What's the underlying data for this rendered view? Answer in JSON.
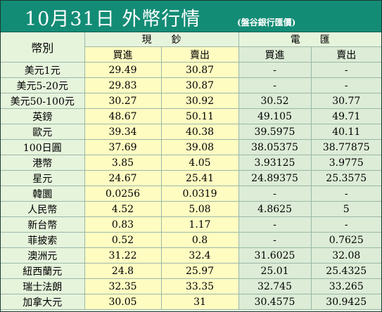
{
  "header": {
    "title": "10月31日 外幣行情",
    "subtitle": "(盤谷銀行匯價)"
  },
  "columns": {
    "currency_label": "幣別",
    "cash_group": "現鈔",
    "wire_group": "電匯",
    "buy": "買進",
    "sell": "賣出"
  },
  "colors": {
    "title_bar": "#138c76",
    "cash_bg": "#fffcc2",
    "wire_bg": "#dcecd6",
    "label_bg": "#e6f4dc"
  },
  "rows": [
    {
      "currency": "美元1元",
      "cash_buy": "29.49",
      "cash_sell": "30.87",
      "wire_buy": "-",
      "wire_sell": "-"
    },
    {
      "currency": "美元5-20元",
      "cash_buy": "29.83",
      "cash_sell": "30.87",
      "wire_buy": "-",
      "wire_sell": "-"
    },
    {
      "currency": "美元50-100元",
      "cash_buy": "30.27",
      "cash_sell": "30.92",
      "wire_buy": "30.52",
      "wire_sell": "30.77"
    },
    {
      "currency": "英鎊",
      "cash_buy": "48.67",
      "cash_sell": "50.11",
      "wire_buy": "49.105",
      "wire_sell": "49.71"
    },
    {
      "currency": "歐元",
      "cash_buy": "39.34",
      "cash_sell": "40.38",
      "wire_buy": "39.5975",
      "wire_sell": "40.11"
    },
    {
      "currency": "100日圓",
      "cash_buy": "37.69",
      "cash_sell": "39.08",
      "wire_buy": "38.05375",
      "wire_sell": "38.77875"
    },
    {
      "currency": "港幣",
      "cash_buy": "3.85",
      "cash_sell": "4.05",
      "wire_buy": "3.93125",
      "wire_sell": "3.9775"
    },
    {
      "currency": "星元",
      "cash_buy": "24.67",
      "cash_sell": "25.41",
      "wire_buy": "24.89375",
      "wire_sell": "25.3575"
    },
    {
      "currency": "韓圜",
      "cash_buy": "0.0256",
      "cash_sell": "0.0319",
      "wire_buy": "-",
      "wire_sell": "-"
    },
    {
      "currency": "人民幣",
      "cash_buy": "4.52",
      "cash_sell": "5.08",
      "wire_buy": "4.8625",
      "wire_sell": "5"
    },
    {
      "currency": "新台幣",
      "cash_buy": "0.83",
      "cash_sell": "1.17",
      "wire_buy": "-",
      "wire_sell": "-"
    },
    {
      "currency": "菲披索",
      "cash_buy": "0.52",
      "cash_sell": "0.8",
      "wire_buy": "-",
      "wire_sell": "0.7625"
    },
    {
      "currency": "澳洲元",
      "cash_buy": "31.22",
      "cash_sell": "32.4",
      "wire_buy": "31.6025",
      "wire_sell": "32.08"
    },
    {
      "currency": "紐西蘭元",
      "cash_buy": "24.8",
      "cash_sell": "25.97",
      "wire_buy": "25.01",
      "wire_sell": "25.4325"
    },
    {
      "currency": "瑞士法朗",
      "cash_buy": "32.35",
      "cash_sell": "33.35",
      "wire_buy": "32.745",
      "wire_sell": "33.265"
    },
    {
      "currency": "加拿大元",
      "cash_buy": "30.05",
      "cash_sell": "31",
      "wire_buy": "30.4575",
      "wire_sell": "30.9425"
    }
  ]
}
